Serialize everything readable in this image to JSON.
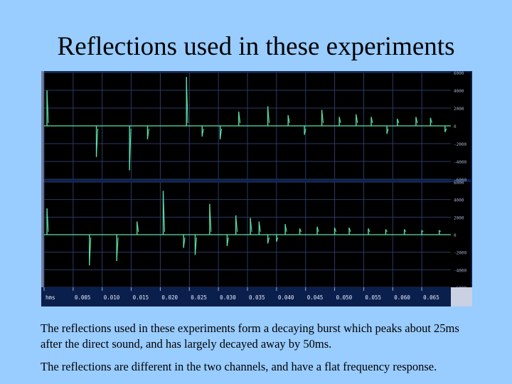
{
  "slide": {
    "title": "Reflections used in these experiments",
    "caption_1": "The reflections used in these experiments form a decaying burst which peaks about 25ms after the direct sound, and has largely decayed away by 50ms.",
    "caption_2": "The reflections are different in the two channels, and have a flat frequency response."
  },
  "chart_data": {
    "type": "line",
    "title": "",
    "xlabel": "",
    "ylabel": "",
    "x_ticks": [
      "hms",
      "0.005",
      "0.010",
      "0.015",
      "0.020",
      "0.025",
      "0.030",
      "0.035",
      "0.040",
      "0.045",
      "0.050",
      "0.055",
      "0.060",
      "0.065"
    ],
    "x_tick_values": [
      0,
      0.005,
      0.01,
      0.015,
      0.02,
      0.025,
      0.03,
      0.035,
      0.04,
      0.045,
      0.05,
      0.055,
      0.06,
      0.065
    ],
    "xlim": [
      0,
      0.07
    ],
    "ylim": [
      -6000,
      6000
    ],
    "y_ticks": [
      "6000",
      "4000",
      "2000",
      "0",
      "-2000",
      "-4000",
      "-6000"
    ],
    "y_tick_values": [
      6000,
      4000,
      2000,
      0,
      -2000,
      -4000,
      -6000
    ],
    "grid": true,
    "colors": {
      "background": "#000000",
      "waveform": "#5de0a6",
      "grid": "#2a3a66",
      "axis_text": "#9fb0d0",
      "axis_bg": "#0b1f4d"
    },
    "series": [
      {
        "channel": "top",
        "baseline": 0,
        "impulses": [
          {
            "x": 0.0005,
            "y": 4000
          },
          {
            "x": 0.009,
            "y": -3500
          },
          {
            "x": 0.0147,
            "y": -5000
          },
          {
            "x": 0.0178,
            "y": -1500
          },
          {
            "x": 0.0245,
            "y": 5500
          },
          {
            "x": 0.0272,
            "y": -1200
          },
          {
            "x": 0.0303,
            "y": -1500
          },
          {
            "x": 0.0335,
            "y": 1600
          },
          {
            "x": 0.0385,
            "y": 2200
          },
          {
            "x": 0.042,
            "y": 1200
          },
          {
            "x": 0.0448,
            "y": -1000
          },
          {
            "x": 0.0478,
            "y": 1800
          },
          {
            "x": 0.0508,
            "y": 1000
          },
          {
            "x": 0.0537,
            "y": 1300
          },
          {
            "x": 0.0563,
            "y": 1000
          },
          {
            "x": 0.059,
            "y": -900
          },
          {
            "x": 0.0608,
            "y": 800
          },
          {
            "x": 0.064,
            "y": 1000
          },
          {
            "x": 0.0665,
            "y": 900
          },
          {
            "x": 0.069,
            "y": -700
          }
        ]
      },
      {
        "channel": "bottom",
        "baseline": 0,
        "impulses": [
          {
            "x": 0.0005,
            "y": 3000
          },
          {
            "x": 0.0078,
            "y": -3500
          },
          {
            "x": 0.0125,
            "y": -3000
          },
          {
            "x": 0.016,
            "y": 1500
          },
          {
            "x": 0.0205,
            "y": 5000
          },
          {
            "x": 0.024,
            "y": -1500
          },
          {
            "x": 0.026,
            "y": -2300
          },
          {
            "x": 0.0285,
            "y": 3500
          },
          {
            "x": 0.0315,
            "y": -1300
          },
          {
            "x": 0.033,
            "y": 2200
          },
          {
            "x": 0.0355,
            "y": 1900
          },
          {
            "x": 0.037,
            "y": 1500
          },
          {
            "x": 0.0385,
            "y": -1000
          },
          {
            "x": 0.04,
            "y": -800
          },
          {
            "x": 0.0415,
            "y": 1200
          },
          {
            "x": 0.044,
            "y": 700
          },
          {
            "x": 0.047,
            "y": 900
          },
          {
            "x": 0.05,
            "y": 800
          },
          {
            "x": 0.0525,
            "y": 800
          },
          {
            "x": 0.0558,
            "y": 700
          },
          {
            "x": 0.0588,
            "y": 600
          },
          {
            "x": 0.062,
            "y": 600
          },
          {
            "x": 0.065,
            "y": 500
          },
          {
            "x": 0.068,
            "y": 500
          }
        ]
      }
    ]
  }
}
